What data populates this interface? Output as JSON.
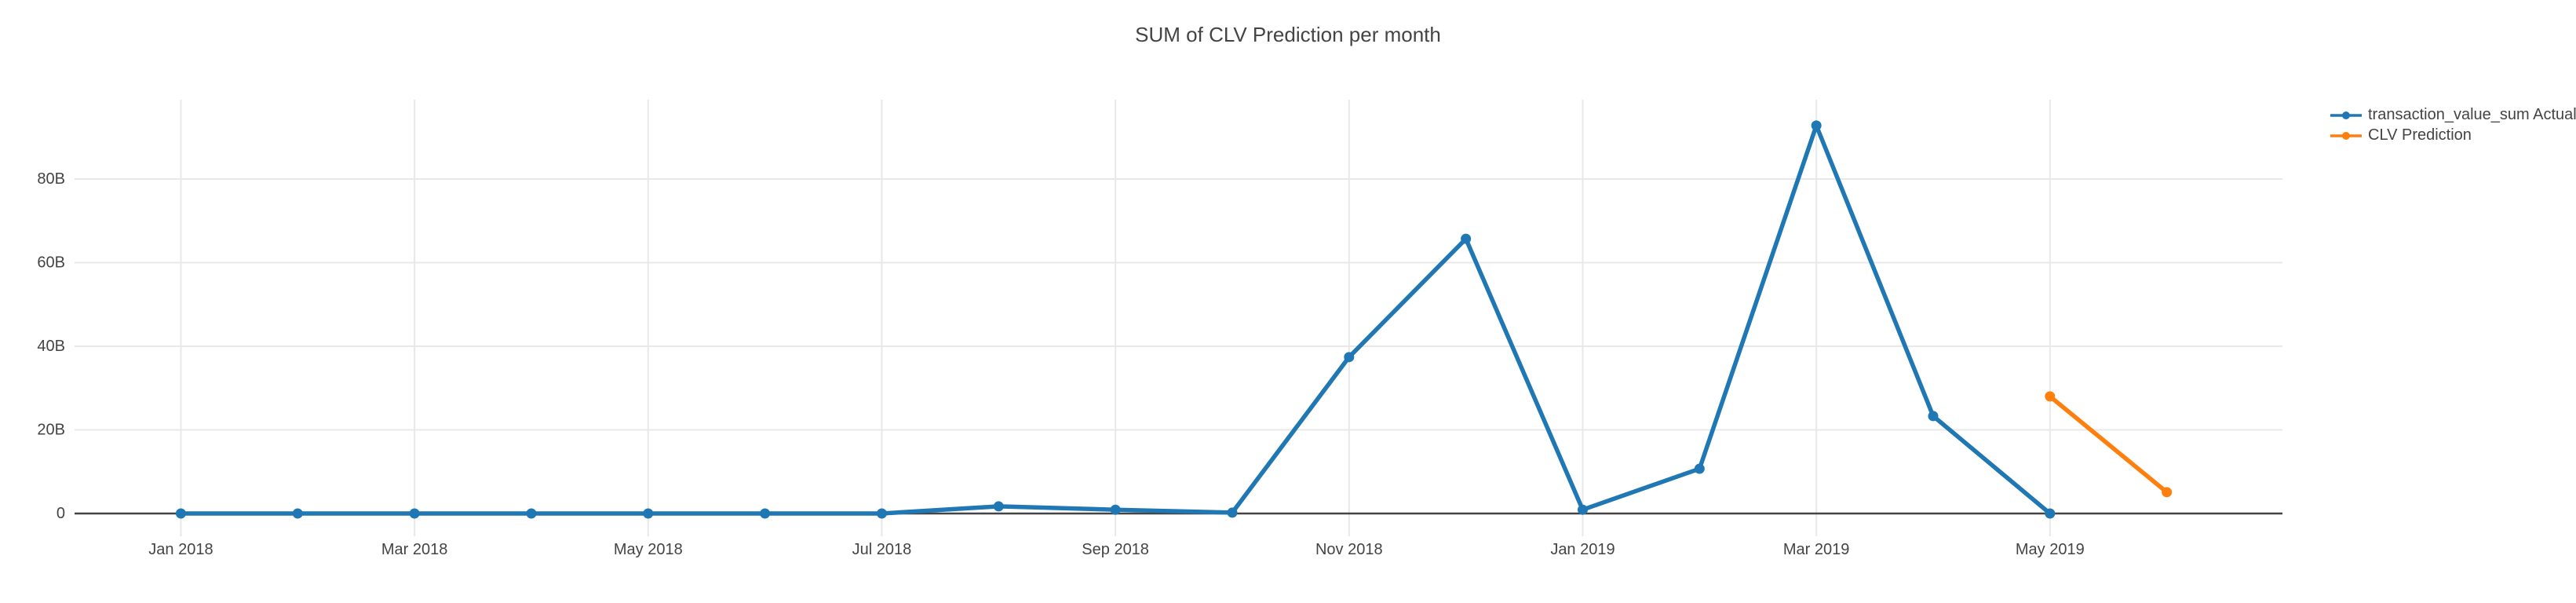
{
  "chart_data": {
    "type": "line",
    "title": "SUM of CLV Prediction per month",
    "value_unit": "B (billions)",
    "categories": [
      "Jan 2018",
      "Feb 2018",
      "Mar 2018",
      "Apr 2018",
      "May 2018",
      "Jun 2018",
      "Jul 2018",
      "Aug 2018",
      "Sep 2018",
      "Oct 2018",
      "Nov 2018",
      "Dec 2018",
      "Jan 2019",
      "Feb 2019",
      "Mar 2019",
      "Apr 2019",
      "May 2019",
      "Jun 2019"
    ],
    "series": [
      {
        "name": "transaction_value_sum Actual",
        "color": "#1f77b4",
        "values_billions": [
          0,
          0,
          0,
          0,
          0,
          0,
          0,
          1.7,
          0.9,
          0.2,
          37.4,
          65.7,
          0.9,
          10.7,
          92.8,
          23.3,
          0,
          null
        ]
      },
      {
        "name": "CLV Prediction",
        "color": "#ff7f0e",
        "values_billions": [
          null,
          null,
          null,
          null,
          null,
          null,
          null,
          null,
          null,
          null,
          null,
          null,
          null,
          null,
          null,
          null,
          28.0,
          5.1
        ]
      }
    ],
    "x_tick_labels": [
      "Jan 2018",
      "Mar 2018",
      "May 2018",
      "Jul 2018",
      "Sep 2018",
      "Nov 2018",
      "Jan 2019",
      "Mar 2019",
      "May 2019"
    ],
    "x_tick_month_indices": [
      0,
      2,
      4,
      6,
      8,
      10,
      12,
      14,
      16
    ],
    "y_ticks": [
      {
        "value": 0,
        "label": "0"
      },
      {
        "value": 20,
        "label": "20B"
      },
      {
        "value": 40,
        "label": "40B"
      },
      {
        "value": 60,
        "label": "60B"
      },
      {
        "value": 80,
        "label": "80B"
      }
    ],
    "x_range_month_index": [
      -0.91,
      17.99
    ],
    "y_range_billions": [
      -5.45,
      98.97
    ],
    "xlabel": "",
    "ylabel": "",
    "grid": true,
    "legend_position": "top-right-outside",
    "colors": {
      "grid": "#e8e8e8",
      "zeroline": "#444444",
      "text": "#444444",
      "background": "#ffffff"
    }
  }
}
